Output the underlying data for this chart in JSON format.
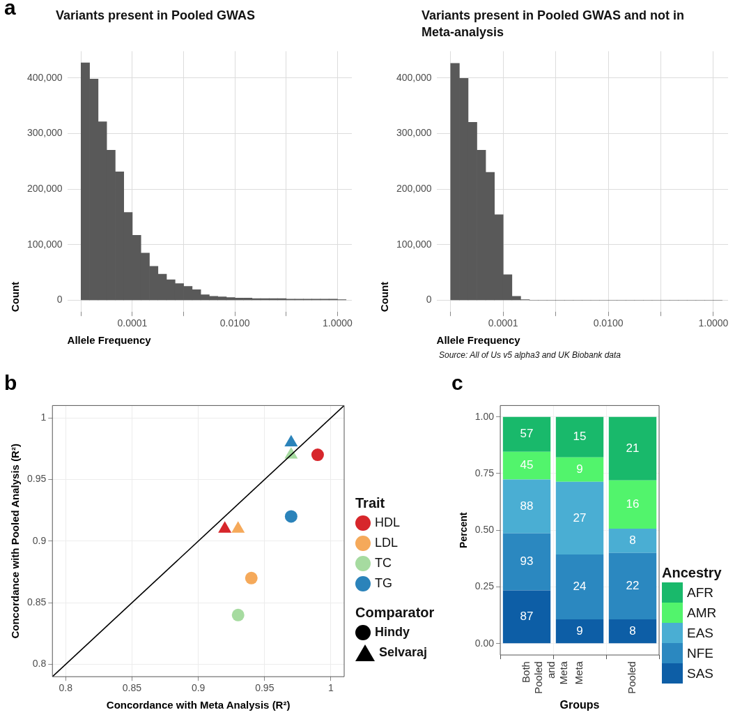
{
  "chart_data": [
    {
      "type": "histogram",
      "title": "Variants present in Pooled GWAS",
      "xlabel": "Allele Frequency",
      "ylabel": "Count",
      "color": "#595959",
      "bins": [
        1e-05,
        1.468e-05,
        2.154e-05,
        3.162e-05,
        4.642e-05,
        6.813e-05,
        0.0001,
        0.0001468,
        0.0002154,
        0.0003162,
        0.0004642,
        0.0006813,
        0.001,
        0.001468,
        0.002154,
        0.003162,
        0.004642,
        0.006813,
        0.01,
        0.01468,
        0.02154,
        0.03162,
        0.04642,
        0.06813,
        0.1,
        0.1468,
        0.2154,
        0.3162,
        0.4642,
        0.6813,
        1,
        1.468
      ],
      "values": [
        427000,
        398000,
        321000,
        270000,
        231000,
        158000,
        117000,
        85000,
        61000,
        47000,
        37000,
        30000,
        25000,
        19000,
        10000,
        7000,
        6000,
        5000,
        4000,
        4000,
        3000,
        3000,
        3000,
        3000,
        2000,
        2000,
        2000,
        2000,
        2000,
        2000,
        1000
      ],
      "log": "x",
      "xlim": [
        5.4e-06,
        1.9
      ],
      "ylim": [
        -21000,
        448000
      ],
      "xticks": [
        {
          "value": 1e-05,
          "label": null
        },
        {
          "value": 0.0001,
          "label": "0.0001"
        },
        {
          "value": 0.001,
          "label": null
        },
        {
          "value": 0.01,
          "label": "0.0100"
        },
        {
          "value": 0.1,
          "label": null
        },
        {
          "value": 1,
          "label": "1.0000"
        }
      ],
      "yticks": [
        0,
        {
          "value": 100000,
          "label": "100,000"
        },
        {
          "value": 200000,
          "label": "200,000"
        },
        {
          "value": 300000,
          "label": "300,000"
        },
        {
          "value": 400000,
          "label": "400,000"
        }
      ],
      "grid": true,
      "annotations": [
        "a"
      ]
    },
    {
      "type": "histogram",
      "title": "Variants present in Pooled GWAS and not in Meta-analysis",
      "xlabel": "Allele Frequency",
      "ylabel": "Count",
      "color": "#595959",
      "bins": [
        1e-05,
        1.468e-05,
        2.154e-05,
        3.162e-05,
        4.642e-05,
        6.813e-05,
        0.0001,
        0.0001468,
        0.0002154,
        0.0003162,
        0.0004642,
        0.0006813,
        0.001,
        0.001468,
        0.002154,
        0.003162,
        0.004642,
        0.006813,
        0.01,
        0.01468,
        0.02154,
        0.03162,
        0.04642,
        0.06813,
        0.1,
        0.1468,
        0.2154,
        0.3162,
        0.4642,
        0.6813,
        1,
        1.468
      ],
      "values": [
        426000,
        399000,
        320000,
        270000,
        230000,
        154000,
        46000,
        7000,
        1000,
        0,
        0,
        0,
        0,
        0,
        0,
        0,
        0,
        0,
        0,
        0,
        0,
        0,
        0,
        0,
        0,
        0,
        0,
        0,
        0,
        0,
        0
      ],
      "log": "x",
      "xlim": [
        5.4e-06,
        1.9
      ],
      "ylim": [
        -21000,
        448000
      ],
      "xticks": [
        {
          "value": 1e-05,
          "label": null
        },
        {
          "value": 0.0001,
          "label": "0.0001"
        },
        {
          "value": 0.001,
          "label": null
        },
        {
          "value": 0.01,
          "label": "0.0100"
        },
        {
          "value": 0.1,
          "label": null
        },
        {
          "value": 1,
          "label": "1.0000"
        }
      ],
      "yticks": [
        0,
        {
          "value": 100000,
          "label": "100,000"
        },
        {
          "value": 200000,
          "label": "200,000"
        },
        {
          "value": 300000,
          "label": "300,000"
        },
        {
          "value": 400000,
          "label": "400,000"
        }
      ],
      "grid": true,
      "annotations": [
        "Source: All of Us v5 alpha3 and UK Biobank data"
      ]
    },
    {
      "type": "scatter",
      "xlabel": "Concordance with Meta Analysis (R²)",
      "ylabel": "Concordance with Pooled Analysis (R²)",
      "legend_title": [
        "Trait",
        "Comparator"
      ],
      "legend": "right",
      "series": [
        {
          "name": "HDL",
          "marker": "circle",
          "color": "#d7262b",
          "x": [
            0.99
          ],
          "values": [
            0.97
          ]
        },
        {
          "marker": "triangle",
          "color": "#d7262b",
          "x": [
            0.92
          ],
          "values": [
            0.91
          ]
        },
        {
          "name": "LDL",
          "marker": "circle",
          "color": "#f5a95a",
          "x": [
            0.94
          ],
          "values": [
            0.87
          ]
        },
        {
          "marker": "triangle",
          "color": "#f5a95a",
          "x": [
            0.93
          ],
          "values": [
            0.91
          ]
        },
        {
          "name": "TC",
          "marker": "circle",
          "color": "#a6dba0",
          "x": [
            0.93
          ],
          "values": [
            0.84
          ]
        },
        {
          "marker": "triangle",
          "color": "#a6dba0",
          "x": [
            0.97
          ],
          "values": [
            0.97
          ]
        },
        {
          "name": "TG",
          "marker": "circle",
          "color": "#2b83ba",
          "x": [
            0.97
          ],
          "values": [
            0.92
          ]
        },
        {
          "marker": "triangle",
          "color": "#2b83ba",
          "x": [
            0.97
          ],
          "values": [
            0.98
          ]
        },
        {
          "name": "Hindy",
          "marker": "circle",
          "color": "#000000"
        },
        {
          "name": "Selvaraj",
          "marker": "triangle",
          "color": "#000000"
        },
        {
          "type": "line",
          "marker": "none",
          "color": "#000000",
          "x": [
            0.79,
            1.01
          ],
          "values": [
            0.79,
            1.01
          ]
        }
      ],
      "xlim": [
        0.79,
        1.01
      ],
      "ylim": [
        0.79,
        1.01
      ],
      "xticks": [
        0.8,
        0.85,
        0.9,
        0.95,
        1
      ],
      "yticks": [
        0.8,
        0.85,
        0.9,
        0.95,
        1
      ],
      "grid": true,
      "annotations": [
        "b"
      ]
    },
    {
      "type": "bar",
      "stacked": true,
      "xlabel": "Groups",
      "ylabel": "Percent",
      "categories": [
        "Both Pooled and Meta",
        "Meta",
        "Pooled"
      ],
      "legend_title": "Ancestry",
      "legend": "right",
      "series": [
        {
          "name": "SAS",
          "color": "#0d5ea6",
          "values": [
            0.235,
            0.107,
            0.107
          ]
        },
        {
          "name": "NFE",
          "color": "#2b88c0",
          "values": [
            0.251,
            0.286,
            0.293
          ]
        },
        {
          "name": "EAS",
          "color": "#4aaed3",
          "values": [
            0.238,
            0.321,
            0.107
          ]
        },
        {
          "name": "AMR",
          "color": "#52f46c",
          "values": [
            0.122,
            0.107,
            0.213
          ]
        },
        {
          "name": "AFR",
          "color": "#19b96b",
          "values": [
            0.154,
            0.179,
            0.28
          ]
        }
      ],
      "ylim": [
        -0.05,
        1.05
      ],
      "yticks": [
        {
          "value": 0,
          "label": "0.00"
        },
        {
          "value": 0.25,
          "label": "0.25"
        },
        {
          "value": 0.5,
          "label": "0.50"
        },
        {
          "value": 0.75,
          "label": "0.75"
        },
        {
          "value": 1,
          "label": "1.00"
        }
      ],
      "grid": true,
      "annotations": [
        "c",
        "87",
        "93",
        "88",
        "45",
        "57",
        "9",
        "24",
        "27",
        "9",
        "15",
        "8",
        "22",
        "8",
        "16",
        "21"
      ]
    }
  ]
}
